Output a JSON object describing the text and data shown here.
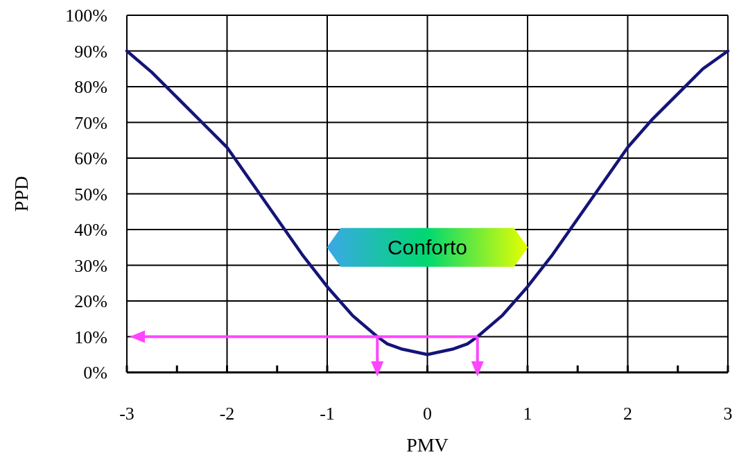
{
  "chart_data": {
    "type": "line",
    "xlabel": "PMV",
    "ylabel": "PPD",
    "x": [
      -3,
      -2.75,
      -2.5,
      -2.25,
      -2,
      -1.75,
      -1.5,
      -1.25,
      -1,
      -0.75,
      -0.5,
      -0.4,
      -0.25,
      0,
      0.25,
      0.4,
      0.5,
      0.75,
      1,
      1.25,
      1.5,
      1.75,
      2,
      2.25,
      2.5,
      2.75,
      3
    ],
    "series": [
      {
        "color": "#141478",
        "values": [
          90,
          84,
          77,
          70,
          63,
          53,
          43,
          33,
          24,
          16,
          10,
          8,
          6.5,
          5,
          6.5,
          8,
          10,
          16,
          24,
          33,
          43,
          53,
          63,
          71,
          78,
          85,
          90
        ]
      }
    ],
    "xlim": [
      -3,
      3
    ],
    "xticks": [
      -3,
      {
        "value": -2.5,
        "label": null
      },
      -2,
      {
        "value": -1.5,
        "label": null
      },
      -1,
      {
        "value": -0.5,
        "label": null
      },
      0,
      {
        "value": 0.5,
        "label": null
      },
      1,
      {
        "value": 1.5,
        "label": null
      },
      2,
      {
        "value": 2.5,
        "label": null
      },
      3
    ],
    "ylim": [
      0,
      100
    ],
    "yticks": [
      {
        "value": 0,
        "label": "0%"
      },
      {
        "value": 10,
        "label": "10%"
      },
      {
        "value": 20,
        "label": "20%"
      },
      {
        "value": 30,
        "label": "30%"
      },
      {
        "value": 40,
        "label": "40%"
      },
      {
        "value": 50,
        "label": "50%"
      },
      {
        "value": 60,
        "label": "60%"
      },
      {
        "value": 70,
        "label": "70%"
      },
      {
        "value": 80,
        "label": "80%"
      },
      {
        "value": 90,
        "label": "90%"
      },
      {
        "value": 100,
        "label": "100%"
      }
    ],
    "grid": true,
    "marker": "none",
    "line_style": "solid",
    "ref_lines": [
      {
        "axis": "y",
        "value": 10,
        "color": "#ff44ff"
      }
    ],
    "annotations": [
      "Conforto"
    ]
  }
}
